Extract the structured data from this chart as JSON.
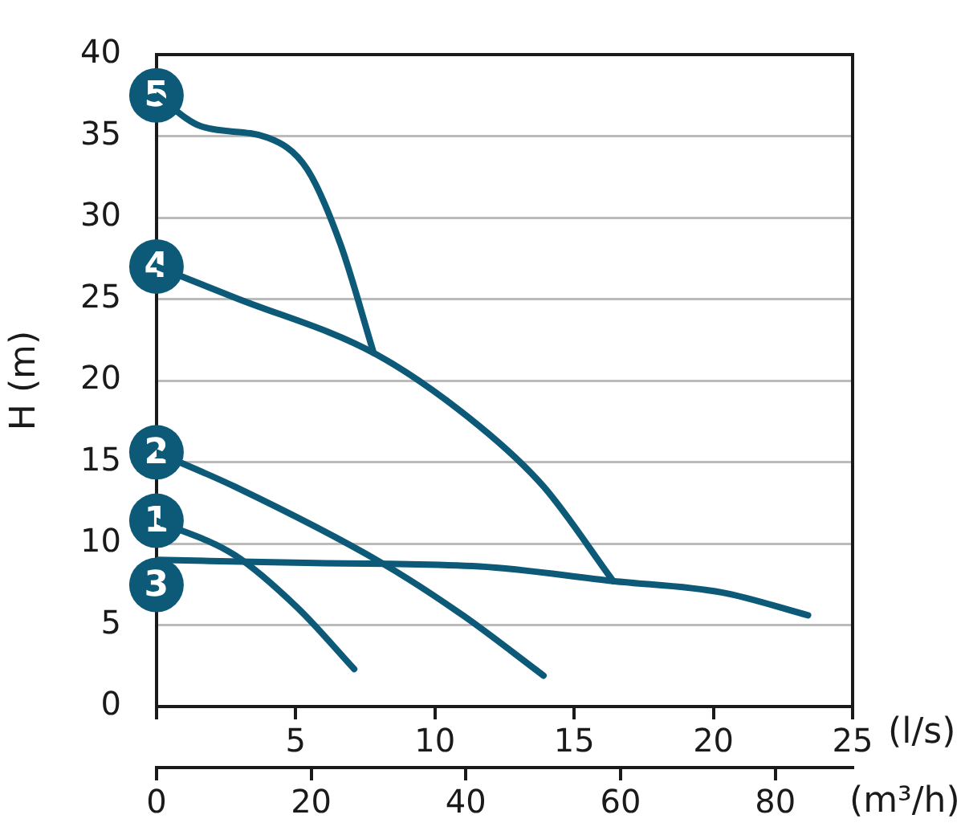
{
  "chart_data": {
    "type": "line",
    "xlabel": "(l/s)",
    "ylabel": "H (m)",
    "x2label": "(m³/h)",
    "xlim": [
      0,
      25
    ],
    "xticks": [
      {
        "value": 0,
        "label": null
      },
      5,
      10,
      15,
      20,
      25
    ],
    "x2lim": [
      0,
      90
    ],
    "x2ticks": [
      0,
      20,
      40,
      60,
      80
    ],
    "ylim": [
      0,
      40
    ],
    "yticks": [
      0,
      5,
      10,
      15,
      20,
      25,
      30,
      35,
      40
    ],
    "grid": "y",
    "legend": false,
    "marker": "none",
    "line_style": "solid",
    "series": [
      {
        "name": "5",
        "color": "#0d5a78",
        "x": [
          0,
          1.6,
          4,
          5.4,
          6.6,
          7.8
        ],
        "values": [
          37.5,
          35.6,
          34.9,
          33,
          28.4,
          21.7
        ]
      },
      {
        "name": "4",
        "color": "#0d5a78",
        "x": [
          0,
          2.8,
          7.9,
          11.6,
          13.9,
          16.4
        ],
        "values": [
          27,
          25.1,
          21.6,
          17.2,
          13.5,
          7.7
        ]
      },
      {
        "name": "2",
        "color": "#0d5a78",
        "x": [
          0,
          2.8,
          8.1,
          11,
          13.9
        ],
        "values": [
          15.6,
          13.5,
          8.8,
          5.6,
          1.9
        ]
      },
      {
        "name": "1",
        "color": "#0d5a78",
        "x": [
          0,
          2.8,
          5.1,
          7.1
        ],
        "values": [
          11.4,
          9.3,
          6,
          2.3
        ]
      },
      {
        "name": "3",
        "color": "#0d5a78",
        "x": [
          0,
          5.7,
          11.6,
          16.4,
          20.3,
          23.4
        ],
        "values": [
          9,
          8.8,
          8.6,
          7.7,
          7,
          5.6
        ]
      }
    ]
  }
}
